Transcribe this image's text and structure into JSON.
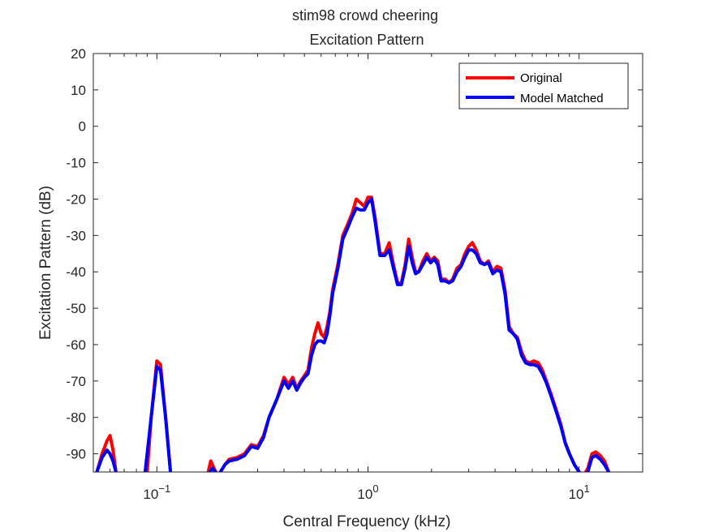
{
  "chart_data": {
    "type": "line",
    "title": "stim98 crowd cheering",
    "subtitle": "Excitation Pattern",
    "xlabel": "Central Frequency (kHz)",
    "ylabel": "Excitation Pattern (dB)",
    "xscale": "log",
    "xlim": [
      0.05,
      20
    ],
    "ylim": [
      -95,
      20
    ],
    "xticks": [
      0.1,
      1,
      10
    ],
    "xtick_labels": [
      {
        "base": "10",
        "exp": "−1"
      },
      {
        "base": "10",
        "exp": "0"
      },
      {
        "base": "10",
        "exp": "1"
      }
    ],
    "yticks": [
      20,
      10,
      0,
      -10,
      -20,
      -30,
      -40,
      -50,
      -60,
      -70,
      -80,
      -90
    ],
    "ytick_labels": [
      "20",
      "10",
      "0",
      "-10",
      "-20",
      "-30",
      "-40",
      "-50",
      "-60",
      "-70",
      "-80",
      "-90"
    ],
    "grid": false,
    "legend_position": "top-right",
    "series": [
      {
        "name": "Original",
        "color": "#ff0000",
        "segments": [
          [
            [
              0.052,
              -95
            ],
            [
              0.055,
              -90
            ],
            [
              0.058,
              -86.5
            ],
            [
              0.06,
              -85
            ],
            [
              0.062,
              -89
            ],
            [
              0.064,
              -95
            ]
          ],
          [
            [
              0.09,
              -95
            ],
            [
              0.094,
              -80
            ],
            [
              0.1,
              -64.5
            ],
            [
              0.104,
              -65.5
            ],
            [
              0.11,
              -80
            ],
            [
              0.116,
              -95
            ]
          ],
          [
            [
              0.175,
              -95
            ],
            [
              0.18,
              -92
            ],
            [
              0.19,
              -95
            ]
          ],
          [
            [
              0.2,
              -95
            ],
            [
              0.21,
              -93
            ],
            [
              0.22,
              -91.5
            ],
            [
              0.24,
              -91
            ],
            [
              0.26,
              -90
            ],
            [
              0.28,
              -87.5
            ],
            [
              0.3,
              -88
            ],
            [
              0.32,
              -85
            ],
            [
              0.34,
              -80
            ],
            [
              0.37,
              -75
            ],
            [
              0.4,
              -69
            ],
            [
              0.42,
              -71
            ],
            [
              0.44,
              -69
            ],
            [
              0.46,
              -72
            ],
            [
              0.48,
              -70
            ],
            [
              0.5,
              -68.5
            ],
            [
              0.52,
              -67
            ],
            [
              0.54,
              -61
            ],
            [
              0.56,
              -57
            ],
            [
              0.58,
              -54
            ],
            [
              0.6,
              -57
            ],
            [
              0.62,
              -58
            ],
            [
              0.64,
              -55
            ],
            [
              0.66,
              -51
            ],
            [
              0.68,
              -45
            ],
            [
              0.72,
              -38
            ],
            [
              0.76,
              -30
            ],
            [
              0.8,
              -27
            ],
            [
              0.84,
              -24
            ],
            [
              0.88,
              -20
            ],
            [
              0.92,
              -21
            ],
            [
              0.96,
              -22
            ],
            [
              1.0,
              -19.5
            ],
            [
              1.04,
              -19.5
            ],
            [
              1.08,
              -25
            ],
            [
              1.14,
              -35
            ],
            [
              1.2,
              -35
            ],
            [
              1.26,
              -32
            ],
            [
              1.32,
              -38
            ],
            [
              1.38,
              -43
            ],
            [
              1.44,
              -43
            ],
            [
              1.5,
              -38
            ],
            [
              1.56,
              -31
            ],
            [
              1.62,
              -36
            ],
            [
              1.68,
              -40
            ],
            [
              1.74,
              -40
            ],
            [
              1.82,
              -37
            ],
            [
              1.9,
              -35
            ],
            [
              1.98,
              -37
            ],
            [
              2.06,
              -36
            ],
            [
              2.14,
              -37
            ],
            [
              2.22,
              -42
            ],
            [
              2.32,
              -42
            ],
            [
              2.42,
              -43
            ],
            [
              2.52,
              -42
            ],
            [
              2.64,
              -39
            ],
            [
              2.76,
              -38
            ],
            [
              2.88,
              -35
            ],
            [
              3.0,
              -33
            ],
            [
              3.12,
              -32
            ],
            [
              3.26,
              -34
            ],
            [
              3.4,
              -37
            ],
            [
              3.56,
              -38
            ],
            [
              3.72,
              -37
            ],
            [
              3.9,
              -40
            ],
            [
              4.08,
              -38.5
            ],
            [
              4.26,
              -39
            ],
            [
              4.46,
              -45
            ],
            [
              4.66,
              -55
            ],
            [
              4.88,
              -57
            ],
            [
              5.1,
              -58
            ],
            [
              5.34,
              -62
            ],
            [
              5.58,
              -64.5
            ],
            [
              5.84,
              -65
            ],
            [
              6.1,
              -64.5
            ],
            [
              6.4,
              -65
            ],
            [
              6.7,
              -67
            ],
            [
              7.0,
              -70
            ],
            [
              7.4,
              -74
            ],
            [
              7.8,
              -78
            ],
            [
              8.2,
              -82
            ],
            [
              8.6,
              -87
            ],
            [
              9.0,
              -90
            ],
            [
              9.5,
              -93
            ],
            [
              10.0,
              -95
            ],
            [
              10.5,
              -96
            ],
            [
              11.0,
              -94
            ],
            [
              11.5,
              -90
            ],
            [
              12.0,
              -89.5
            ],
            [
              12.6,
              -90.5
            ],
            [
              13.2,
              -92
            ],
            [
              13.8,
              -95
            ]
          ]
        ]
      },
      {
        "name": "Model Matched",
        "color": "#0000ff",
        "segments": [
          [
            [
              0.052,
              -95
            ],
            [
              0.055,
              -91
            ],
            [
              0.058,
              -89
            ],
            [
              0.06,
              -90
            ],
            [
              0.062,
              -92
            ],
            [
              0.064,
              -95
            ]
          ],
          [
            [
              0.088,
              -95
            ],
            [
              0.094,
              -80
            ],
            [
              0.1,
              -66
            ],
            [
              0.104,
              -67
            ],
            [
              0.11,
              -80
            ],
            [
              0.116,
              -95
            ]
          ],
          [
            [
              0.178,
              -95
            ],
            [
              0.183,
              -94
            ],
            [
              0.19,
              -95
            ]
          ],
          [
            [
              0.2,
              -95
            ],
            [
              0.21,
              -93
            ],
            [
              0.22,
              -92
            ],
            [
              0.24,
              -91.5
            ],
            [
              0.26,
              -90.5
            ],
            [
              0.28,
              -88
            ],
            [
              0.3,
              -88.5
            ],
            [
              0.32,
              -85.5
            ],
            [
              0.34,
              -80
            ],
            [
              0.37,
              -75
            ],
            [
              0.4,
              -70
            ],
            [
              0.42,
              -72
            ],
            [
              0.44,
              -70
            ],
            [
              0.46,
              -72.5
            ],
            [
              0.48,
              -70.5
            ],
            [
              0.5,
              -69
            ],
            [
              0.52,
              -68
            ],
            [
              0.54,
              -63
            ],
            [
              0.56,
              -60
            ],
            [
              0.58,
              -59
            ],
            [
              0.6,
              -59
            ],
            [
              0.62,
              -59.5
            ],
            [
              0.64,
              -57
            ],
            [
              0.66,
              -52
            ],
            [
              0.68,
              -46
            ],
            [
              0.72,
              -39
            ],
            [
              0.76,
              -31
            ],
            [
              0.8,
              -28
            ],
            [
              0.84,
              -25
            ],
            [
              0.88,
              -22.5
            ],
            [
              0.92,
              -23
            ],
            [
              0.96,
              -23
            ],
            [
              1.0,
              -21
            ],
            [
              1.04,
              -20
            ],
            [
              1.08,
              -26
            ],
            [
              1.14,
              -35.5
            ],
            [
              1.2,
              -35.5
            ],
            [
              1.26,
              -34
            ],
            [
              1.32,
              -39
            ],
            [
              1.38,
              -43.5
            ],
            [
              1.44,
              -43.5
            ],
            [
              1.5,
              -39
            ],
            [
              1.56,
              -33
            ],
            [
              1.62,
              -37.5
            ],
            [
              1.68,
              -40.5
            ],
            [
              1.74,
              -40
            ],
            [
              1.82,
              -38
            ],
            [
              1.9,
              -36
            ],
            [
              1.98,
              -37.5
            ],
            [
              2.06,
              -36.5
            ],
            [
              2.14,
              -38
            ],
            [
              2.22,
              -42.5
            ],
            [
              2.32,
              -42.5
            ],
            [
              2.42,
              -43
            ],
            [
              2.52,
              -42.5
            ],
            [
              2.64,
              -40
            ],
            [
              2.76,
              -38.5
            ],
            [
              2.88,
              -36
            ],
            [
              3.0,
              -34
            ],
            [
              3.12,
              -34
            ],
            [
              3.26,
              -35
            ],
            [
              3.4,
              -37.5
            ],
            [
              3.56,
              -38
            ],
            [
              3.72,
              -37.5
            ],
            [
              3.9,
              -40.5
            ],
            [
              4.08,
              -39.5
            ],
            [
              4.26,
              -40
            ],
            [
              4.46,
              -46
            ],
            [
              4.66,
              -56
            ],
            [
              4.88,
              -57
            ],
            [
              5.1,
              -58.5
            ],
            [
              5.34,
              -63
            ],
            [
              5.58,
              -65
            ],
            [
              5.84,
              -65.5
            ],
            [
              6.1,
              -65.5
            ],
            [
              6.4,
              -66
            ],
            [
              6.7,
              -68
            ],
            [
              7.0,
              -70.5
            ],
            [
              7.4,
              -74.5
            ],
            [
              7.8,
              -78.5
            ],
            [
              8.2,
              -82.5
            ],
            [
              8.6,
              -87
            ],
            [
              9.0,
              -90
            ],
            [
              9.5,
              -93
            ],
            [
              10.0,
              -95
            ],
            [
              10.5,
              -96
            ],
            [
              11.0,
              -95
            ],
            [
              11.5,
              -91
            ],
            [
              12.0,
              -90.5
            ],
            [
              12.6,
              -91.5
            ],
            [
              13.2,
              -93
            ],
            [
              13.8,
              -95
            ]
          ]
        ]
      }
    ]
  }
}
